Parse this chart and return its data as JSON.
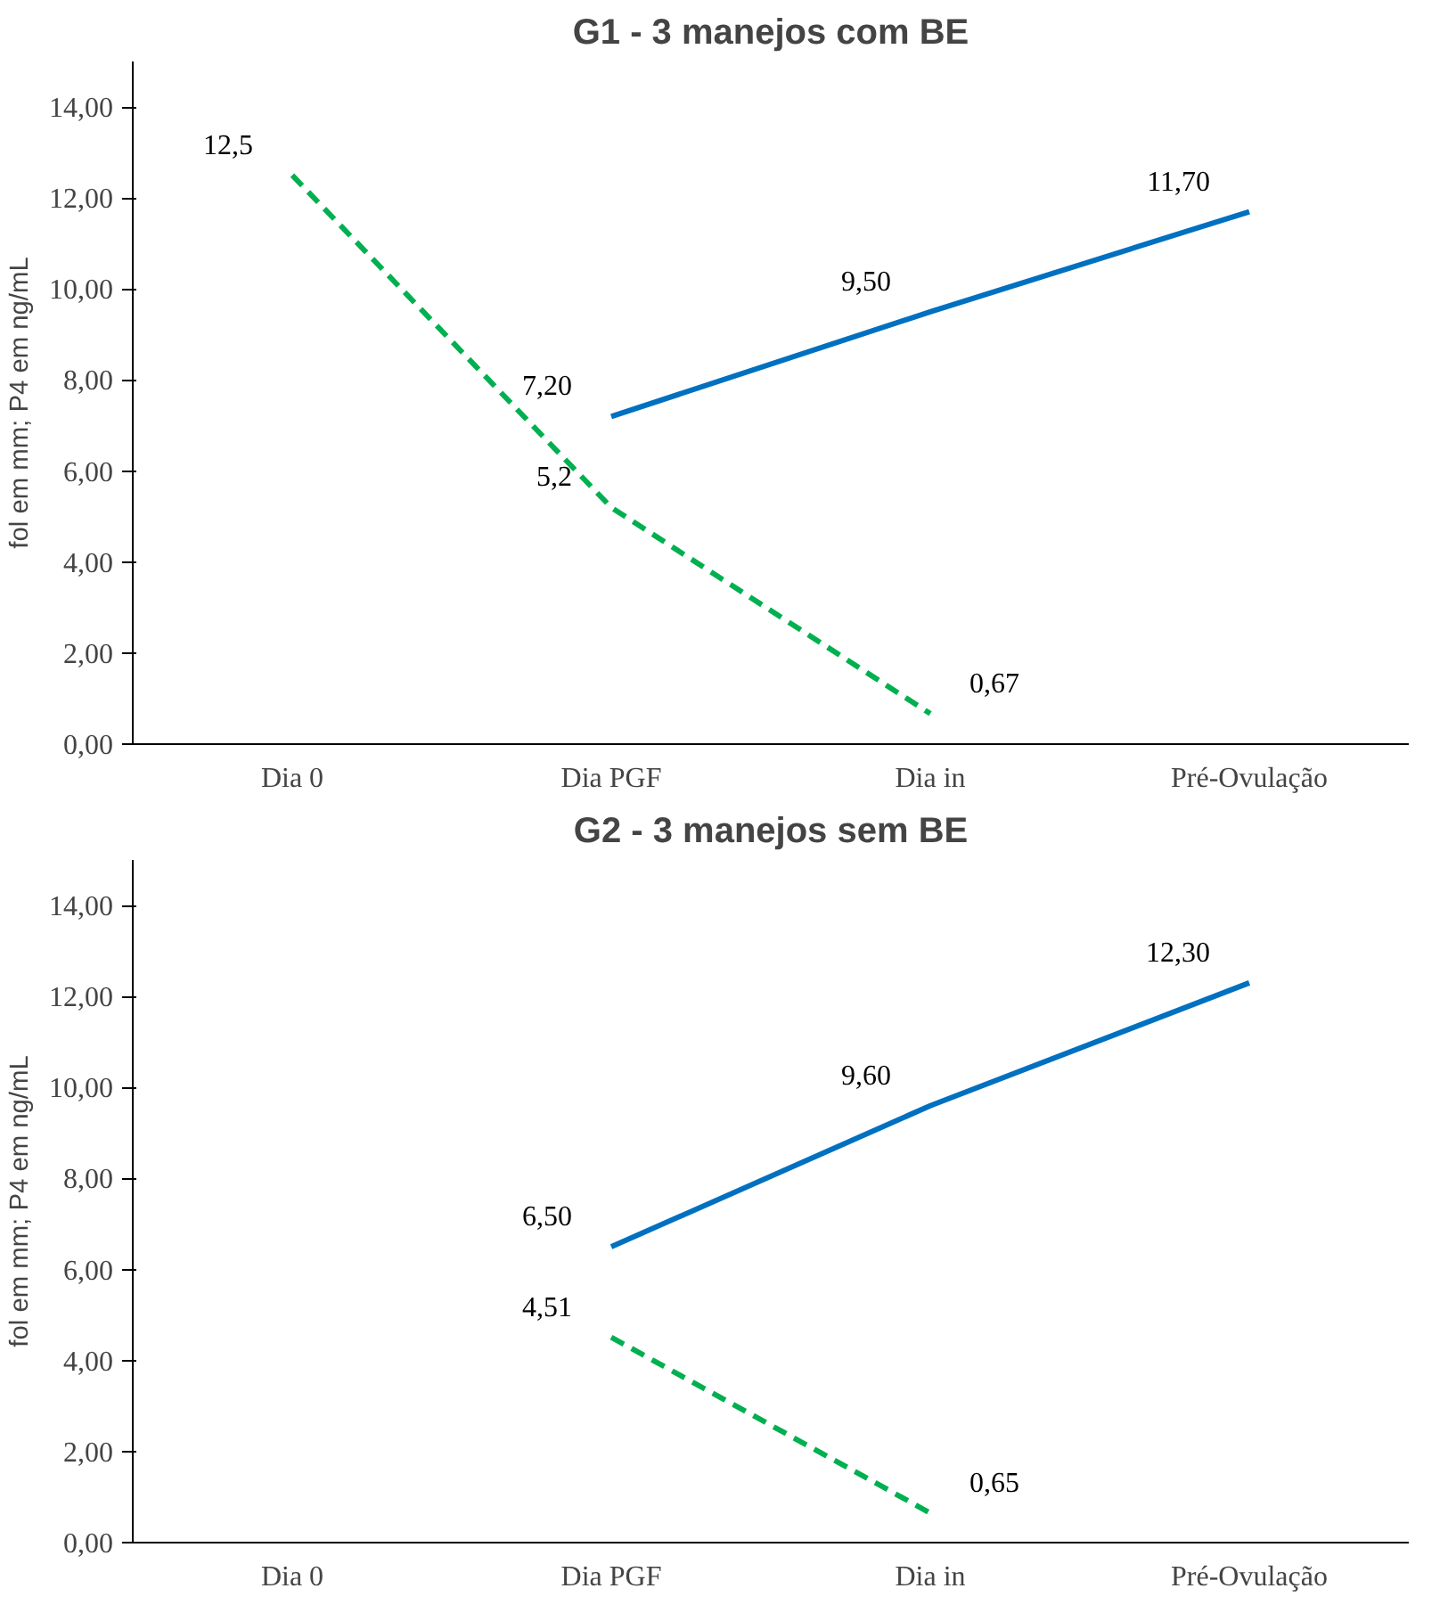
{
  "chart_data": [
    {
      "type": "line",
      "title": "G1 - 3 manejos com BE",
      "ylabel": "fol em mm; P4 em ng/mL",
      "categories": [
        "Dia 0",
        "Dia PGF",
        "Dia in",
        "Pré-Ovulação"
      ],
      "series": [
        {
          "color": "#0070c0",
          "line_style": "solid",
          "values": [
            null,
            7.2,
            9.5,
            11.7
          ],
          "value_labels": [
            null,
            "7,20",
            "9,50",
            "11,70"
          ]
        },
        {
          "color": "#00b050",
          "line_style": "dashed",
          "values": [
            12.5,
            5.2,
            0.67,
            null
          ],
          "value_labels": [
            "12,5",
            "5,2",
            "0,67",
            null
          ]
        }
      ],
      "ylim": [
        0,
        15
      ],
      "yticks": [
        {
          "value": 0,
          "label": "0,00"
        },
        {
          "value": 2,
          "label": "2,00"
        },
        {
          "value": 4,
          "label": "4,00"
        },
        {
          "value": 6,
          "label": "6,00"
        },
        {
          "value": 8,
          "label": "8,00"
        },
        {
          "value": 10,
          "label": "10,00"
        },
        {
          "value": 12,
          "label": "12,00"
        },
        {
          "value": 14,
          "label": "14,00"
        }
      ],
      "grid": false,
      "marker": "none"
    },
    {
      "type": "line",
      "title": "G2 - 3 manejos sem BE",
      "ylabel": "fol em mm; P4 em ng/mL",
      "categories": [
        "Dia 0",
        "Dia PGF",
        "Dia in",
        "Pré-Ovulação"
      ],
      "series": [
        {
          "color": "#0070c0",
          "line_style": "solid",
          "values": [
            null,
            6.5,
            9.6,
            12.3
          ],
          "value_labels": [
            null,
            "6,50",
            "9,60",
            "12,30"
          ]
        },
        {
          "color": "#00b050",
          "line_style": "dashed",
          "values": [
            null,
            4.51,
            0.65,
            null
          ],
          "value_labels": [
            null,
            "4,51",
            "0,65",
            null
          ]
        }
      ],
      "ylim": [
        0,
        15
      ],
      "yticks": [
        {
          "value": 0,
          "label": "0,00"
        },
        {
          "value": 2,
          "label": "2,00"
        },
        {
          "value": 4,
          "label": "4,00"
        },
        {
          "value": 6,
          "label": "6,00"
        },
        {
          "value": 8,
          "label": "8,00"
        },
        {
          "value": 10,
          "label": "10,00"
        },
        {
          "value": 12,
          "label": "12,00"
        },
        {
          "value": 14,
          "label": "14,00"
        }
      ],
      "grid": false,
      "marker": "none"
    }
  ]
}
